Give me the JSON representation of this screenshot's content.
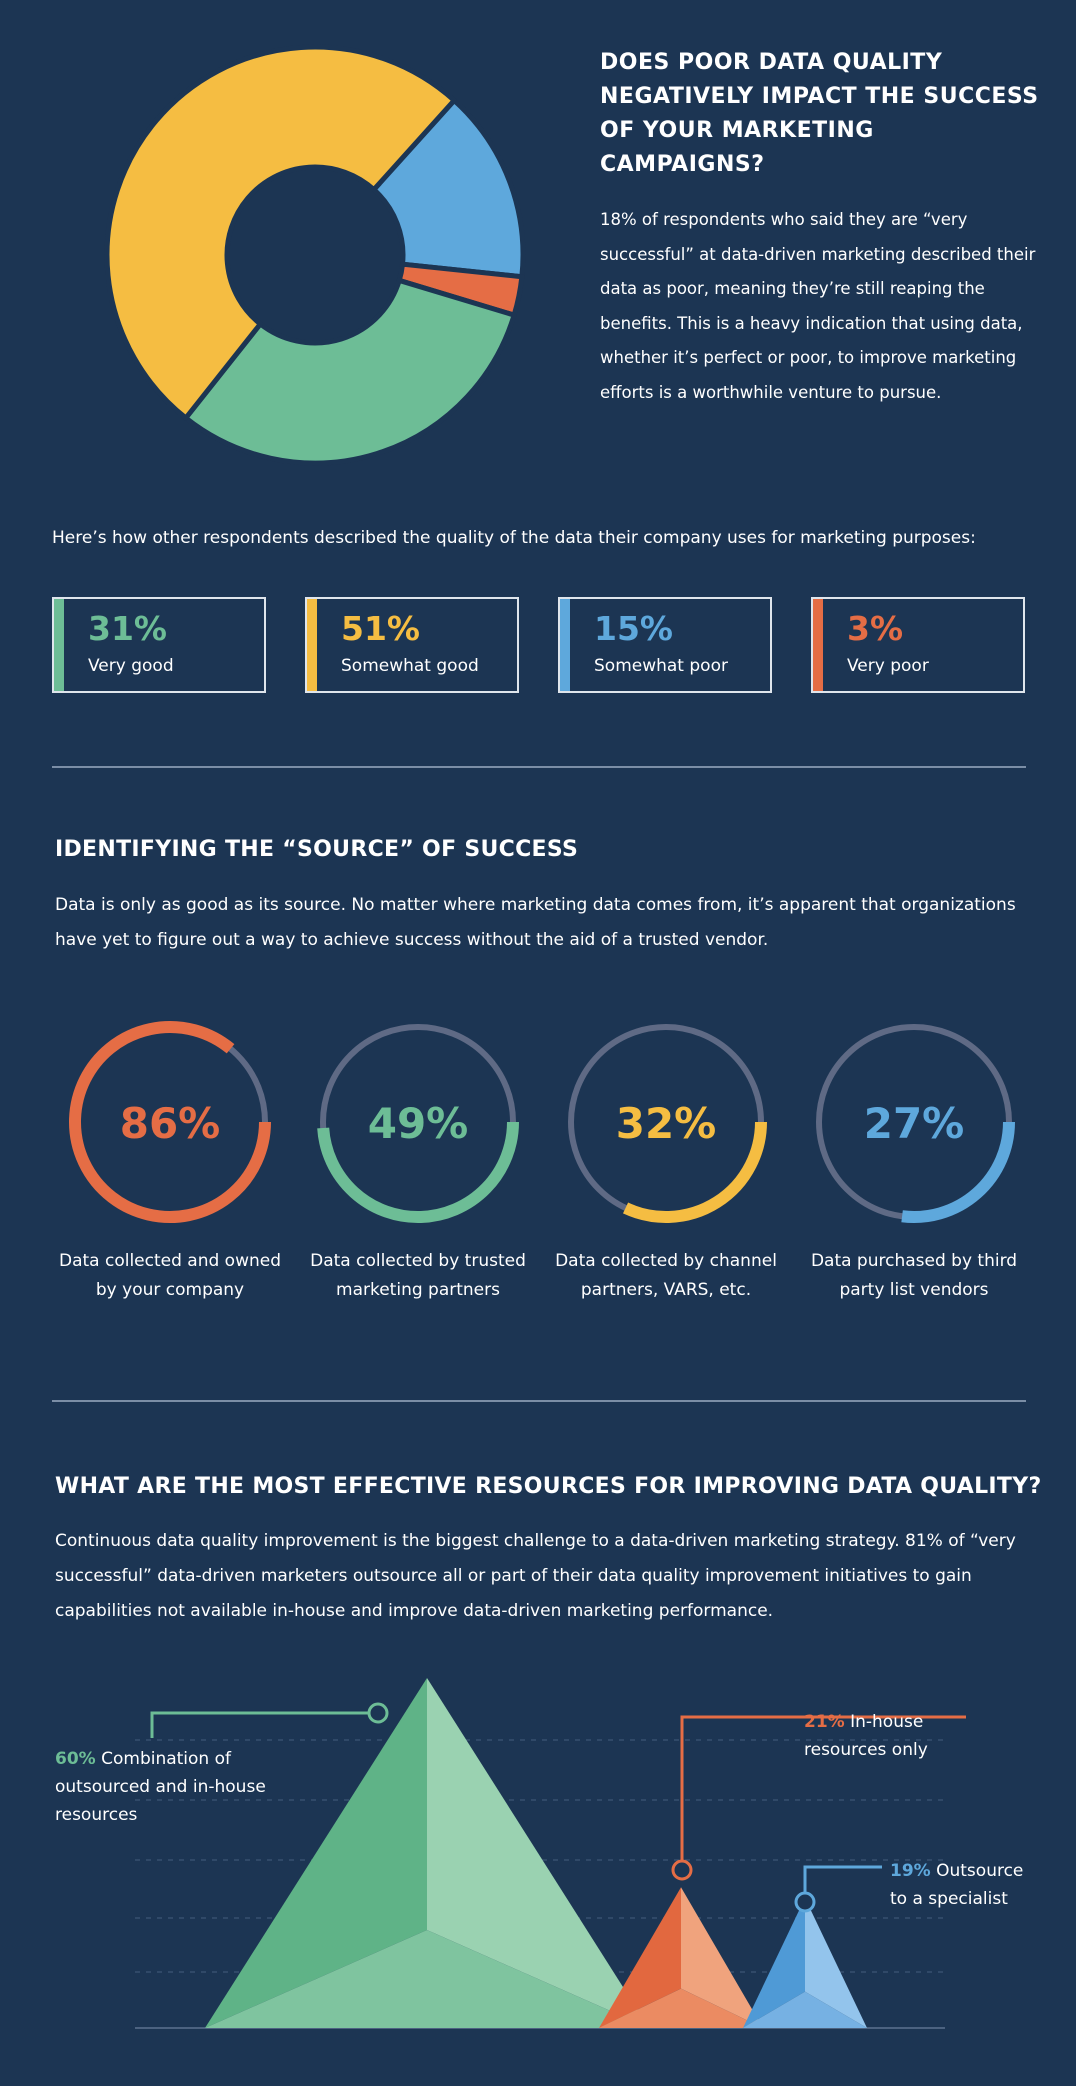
{
  "section1": {
    "title": "DOES POOR DATA QUALITY NEGATIVELY IMPACT THE SUCCESS OF YOUR MARKETING CAMPAIGNS?",
    "body": "18% of respondents who said they are “very successful” at data-driven marketing described their data as poor, meaning they’re still reaping the benefits. This is a heavy indication that using data, whether it’s perfect or poor, to improve marketing efforts is a worthwhile venture to pursue."
  },
  "intro": "Here’s how other respondents described the quality of the data their company uses for marketing purposes:",
  "colors": {
    "background": "#1c3553",
    "very_good": "#6dbd96",
    "somewhat_good": "#f5bd42",
    "somewhat_poor": "#5ea8dc",
    "very_poor": "#e56d45",
    "track": "#5f6a85"
  },
  "section2": {
    "title": "IDENTIFYING THE “SOURCE” OF SUCCESS",
    "body": "Data is only as good as its source. No matter where marketing data comes from, it’s apparent that organizations have yet to figure out a way to achieve success without the aid of a trusted vendor."
  },
  "section3": {
    "title": "WHAT ARE THE MOST EFFECTIVE RESOURCES FOR IMPROVING DATA QUALITY?",
    "body": "Continuous data quality improvement is the biggest challenge to a data-driven marketing strategy. 81% of “very successful” data-driven marketers outsource all or part of their data quality improvement initiatives to gain capabilities not available in-house and improve data-driven marketing performance."
  },
  "chart_data": [
    {
      "type": "pie",
      "variant": "donut",
      "categories": [
        "Very good",
        "Somewhat good",
        "Somewhat poor",
        "Very poor"
      ],
      "values": [
        31,
        51,
        15,
        3
      ],
      "labels": [
        "31%",
        "51%",
        "15%",
        "3%"
      ],
      "colors": [
        "#6dbd96",
        "#f5bd42",
        "#5ea8dc",
        "#e56d45"
      ]
    },
    {
      "type": "pie",
      "variant": "progress-rings",
      "categories": [
        "Data collected and owned by your company",
        "Data collected by trusted marketing partners",
        "Data collected by channel partners, VARS, etc.",
        "Data purchased by third party list vendors"
      ],
      "values": [
        86,
        49,
        32,
        27
      ],
      "labels": [
        "86%",
        "49%",
        "32%",
        "27%"
      ],
      "colors": [
        "#e56d45",
        "#6dbd96",
        "#f5bd42",
        "#5ea8dc"
      ]
    },
    {
      "type": "bar",
      "variant": "pyramids",
      "categories": [
        "Combination of outsourced and in-house resources",
        "In-house resources only",
        "Outsource to a specialist"
      ],
      "values": [
        60,
        21,
        19
      ],
      "labels": [
        "60%",
        "21%",
        "19%"
      ],
      "colors": [
        "#6dbd96",
        "#e56d45",
        "#5ea8dc"
      ]
    }
  ]
}
